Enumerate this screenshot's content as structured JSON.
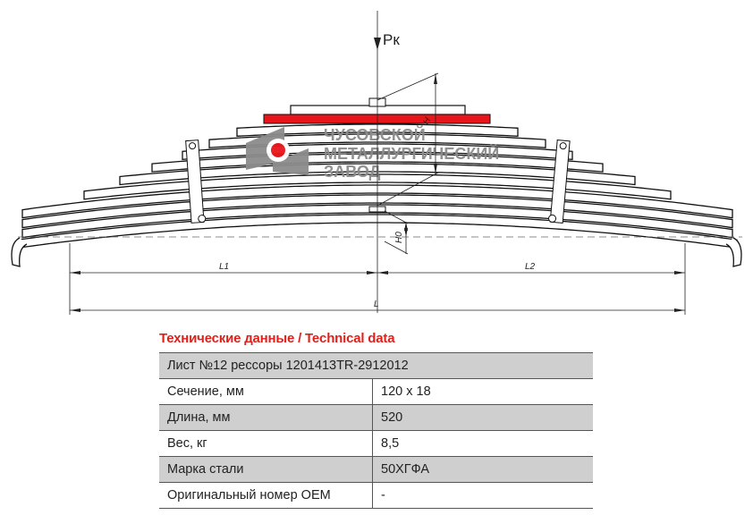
{
  "drawing": {
    "load_label": "Pк",
    "labels": {
      "l1": "L1",
      "l2": "L2",
      "l": "L",
      "h": "H",
      "h0": "H0"
    },
    "highlight_color": "#e8151b",
    "logo": {
      "text_lines": [
        "ЧУСОВСКОЙ",
        "МЕТАЛЛУРГИЧЕСКИЙ",
        "ЗАВОД"
      ],
      "color": "#8c8c8c",
      "dot_color": "#e8151b"
    }
  },
  "tech": {
    "title": "Технические данные / Technical data",
    "header": "Лист №12 рессоры 1201413TR-2912012",
    "rows": [
      {
        "label": "Сечение, мм",
        "value": "120 x 18"
      },
      {
        "label": "Длина, мм",
        "value": "520"
      },
      {
        "label": "Вес, кг",
        "value": "8,5"
      },
      {
        "label": "Марка стали",
        "value": "50ХГФА"
      },
      {
        "label": "Оригинальный номер OEM",
        "value": "-"
      }
    ]
  }
}
